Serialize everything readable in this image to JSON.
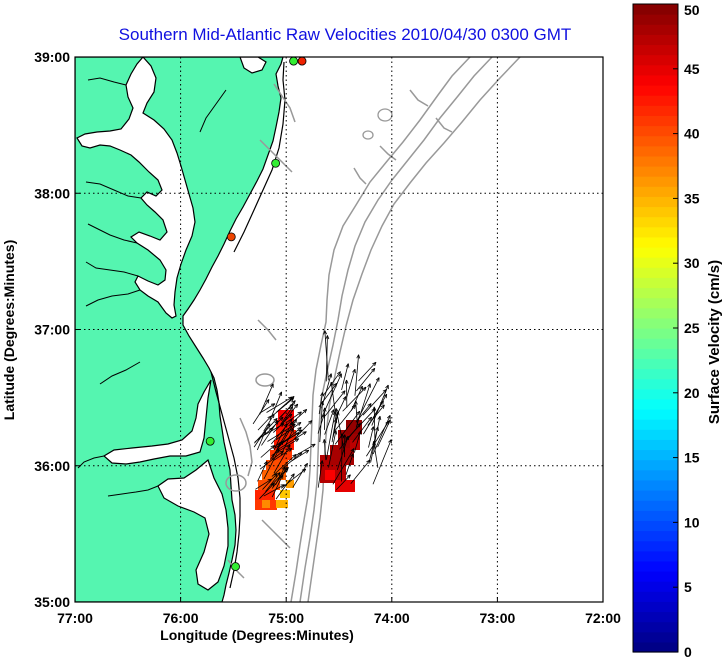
{
  "title": "Southern Mid-Atlantic Raw Velocities 2010/04/30 0300 GMT",
  "map": {
    "xlabel": "Longitude (Degrees:Minutes)",
    "ylabel": "Latitude (Degrees:Minutes)",
    "lon_range": [
      -77,
      -72
    ],
    "lat_range": [
      35,
      39
    ],
    "x_ticks": [
      {
        "value": -77,
        "label": "77:00"
      },
      {
        "value": -76,
        "label": "76:00"
      },
      {
        "value": -75,
        "label": "75:00"
      },
      {
        "value": -74,
        "label": "74:00"
      },
      {
        "value": -73,
        "label": "73:00"
      },
      {
        "value": -72,
        "label": "72:00"
      }
    ],
    "y_ticks": [
      {
        "value": 35,
        "label": "35:00"
      },
      {
        "value": 36,
        "label": "36:00"
      },
      {
        "value": 37,
        "label": "37:00"
      },
      {
        "value": 38,
        "label": "38:00"
      },
      {
        "value": 39,
        "label": "39:00"
      }
    ],
    "grid": true,
    "land_color": "#55f5b0",
    "coast_color": "#000000",
    "bathy_color": "#999999",
    "stations": [
      {
        "lon": -74.85,
        "lat": 38.97,
        "color": "#ee2200"
      },
      {
        "lon": -74.93,
        "lat": 38.97,
        "color": "#33ee33"
      },
      {
        "lon": -75.1,
        "lat": 38.22,
        "color": "#33ee33"
      },
      {
        "lon": -75.52,
        "lat": 37.68,
        "color": "#ee4400"
      },
      {
        "lon": -75.72,
        "lat": 36.18,
        "color": "#33ee33"
      },
      {
        "lon": -75.48,
        "lat": 35.26,
        "color": "#33ee33"
      }
    ]
  },
  "colorbar": {
    "label": "Surface Velocity (cm/s)",
    "min": 0,
    "max": 50,
    "ticks": [
      "0",
      "5",
      "10",
      "15",
      "20",
      "25",
      "30",
      "35",
      "40",
      "45",
      "50"
    ]
  }
}
